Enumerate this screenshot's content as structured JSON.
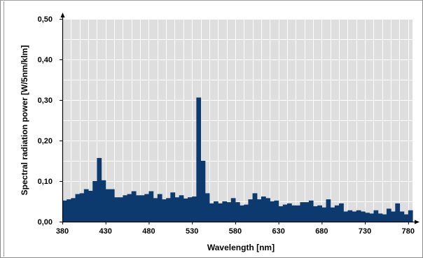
{
  "chart_data": {
    "type": "bar",
    "xlabel": "Wavelength [nm]",
    "ylabel": "Spectral radiation power [W/5nm/klm]",
    "xlim": [
      380,
      785
    ],
    "ylim": [
      0,
      0.5
    ],
    "x_ticks": [
      "380",
      "430",
      "480",
      "530",
      "580",
      "630",
      "680",
      "730",
      "780"
    ],
    "y_ticks": [
      "0,00",
      "0,10",
      "0,20",
      "0,30",
      "0,40",
      "0,50"
    ],
    "grid": true,
    "bar_color": "#0d3a6e",
    "bin_start": 380,
    "bin_width": 5,
    "values": [
      0.052,
      0.055,
      0.058,
      0.068,
      0.07,
      0.08,
      0.076,
      0.1,
      0.157,
      0.102,
      0.08,
      0.08,
      0.06,
      0.06,
      0.065,
      0.068,
      0.075,
      0.065,
      0.065,
      0.068,
      0.075,
      0.058,
      0.068,
      0.055,
      0.058,
      0.072,
      0.06,
      0.065,
      0.057,
      0.06,
      0.062,
      0.306,
      0.15,
      0.07,
      0.045,
      0.05,
      0.045,
      0.05,
      0.048,
      0.058,
      0.048,
      0.04,
      0.042,
      0.055,
      0.07,
      0.055,
      0.062,
      0.058,
      0.05,
      0.052,
      0.038,
      0.042,
      0.045,
      0.04,
      0.04,
      0.048,
      0.048,
      0.052,
      0.038,
      0.04,
      0.035,
      0.055,
      0.035,
      0.04,
      0.045,
      0.025,
      0.028,
      0.025,
      0.028,
      0.025,
      0.022,
      0.02,
      0.028,
      0.02,
      0.018,
      0.032,
      0.025,
      0.045,
      0.025,
      0.018,
      0.028
    ]
  }
}
